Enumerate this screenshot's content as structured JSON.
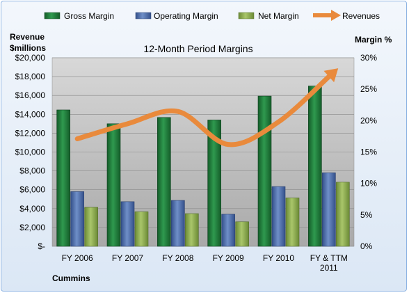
{
  "chart_data": {
    "type": "bar",
    "title": "12-Month Period Margins",
    "categories": [
      "FY 2006",
      "FY 2007",
      "FY 2008",
      "FY 2009",
      "FY 2010",
      "FY & TTM 2011"
    ],
    "series": [
      {
        "name": "Gross Margin",
        "axis": "right",
        "values": [
          21.7,
          19.5,
          20.5,
          20.1,
          23.9,
          25.5
        ],
        "color": "#1f7a3a"
      },
      {
        "name": "Operating Margin",
        "axis": "right",
        "values": [
          8.7,
          7.1,
          7.3,
          5.1,
          9.5,
          11.7
        ],
        "color": "#4f6fa8"
      },
      {
        "name": "Net Margin",
        "axis": "right",
        "values": [
          6.2,
          5.5,
          5.2,
          3.9,
          7.7,
          10.2
        ],
        "color": "#8fac52"
      },
      {
        "name": "Revenues",
        "axis": "left",
        "type": "line",
        "values": [
          11400,
          13000,
          14300,
          10800,
          13200,
          18000
        ],
        "color": "#e98a3c"
      }
    ],
    "y_left": {
      "label_line1": "Revenue",
      "label_line2": "$millions",
      "min": 0,
      "max": 20000,
      "ticks": [
        "$-",
        "$2,000",
        "$4,000",
        "$6,000",
        "$8,000",
        "$10,000",
        "$12,000",
        "$14,000",
        "$16,000",
        "$18,000",
        "$20,000"
      ]
    },
    "y_right": {
      "label": "Margin %",
      "min": 0,
      "max": 30,
      "ticks": [
        "0%",
        "5%",
        "10%",
        "15%",
        "20%",
        "25%",
        "30%"
      ]
    },
    "company_label": "Cummins",
    "x_labels": [
      [
        "FY 2006"
      ],
      [
        "FY 2007"
      ],
      [
        "FY 2008"
      ],
      [
        "FY 2009"
      ],
      [
        "FY 2010"
      ],
      [
        "FY & TTM",
        "2011"
      ]
    ],
    "legend_position": "top",
    "grid": true,
    "plot_background": "#c8c8c8"
  }
}
